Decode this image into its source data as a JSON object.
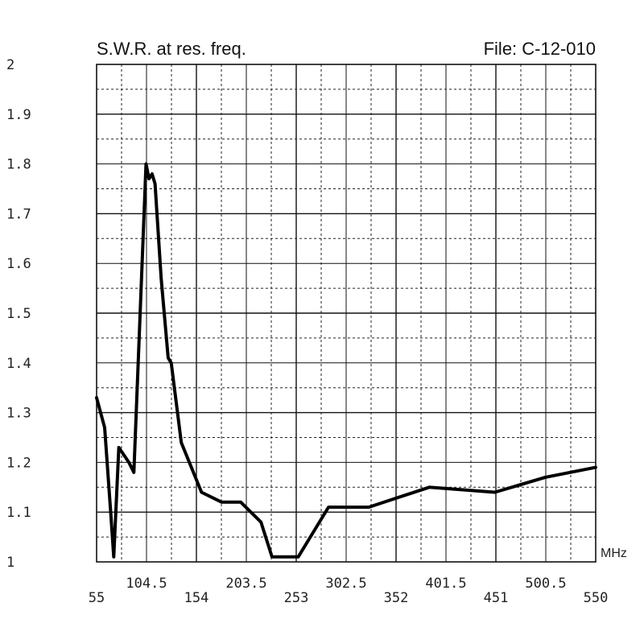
{
  "chart_data": {
    "type": "line",
    "title": "S.W.R. at res. freq.",
    "file_label": "File:  C-12-010",
    "xunit": "MHz",
    "xlim": [
      55,
      550
    ],
    "ylim": [
      1,
      2
    ],
    "x_ticks_upper": [
      "104.5",
      "203.5",
      "302.5",
      "401.5",
      "500.5"
    ],
    "x_ticks_lower": [
      "55",
      "154",
      "253",
      "352",
      "451",
      "550"
    ],
    "y_ticks": [
      "2",
      "1.9",
      "1.8",
      "1.7",
      "1.6",
      "1.5",
      "1.4",
      "1.3",
      "1.2",
      "1.1",
      "1"
    ],
    "grid": true,
    "series": [
      {
        "x": [
          55,
          63,
          69,
          72,
          77,
          87,
          92,
          104,
          107,
          110,
          113,
          119,
          126,
          129,
          139,
          159,
          179,
          198,
          218,
          229,
          255,
          285,
          325,
          385,
          450,
          500,
          550
        ],
        "y": [
          1.33,
          1.27,
          1.1,
          1.01,
          1.23,
          1.2,
          1.18,
          1.8,
          1.77,
          1.78,
          1.76,
          1.57,
          1.41,
          1.4,
          1.24,
          1.14,
          1.12,
          1.12,
          1.08,
          1.01,
          1.01,
          1.11,
          1.11,
          1.15,
          1.14,
          1.17,
          1.19
        ]
      }
    ]
  }
}
